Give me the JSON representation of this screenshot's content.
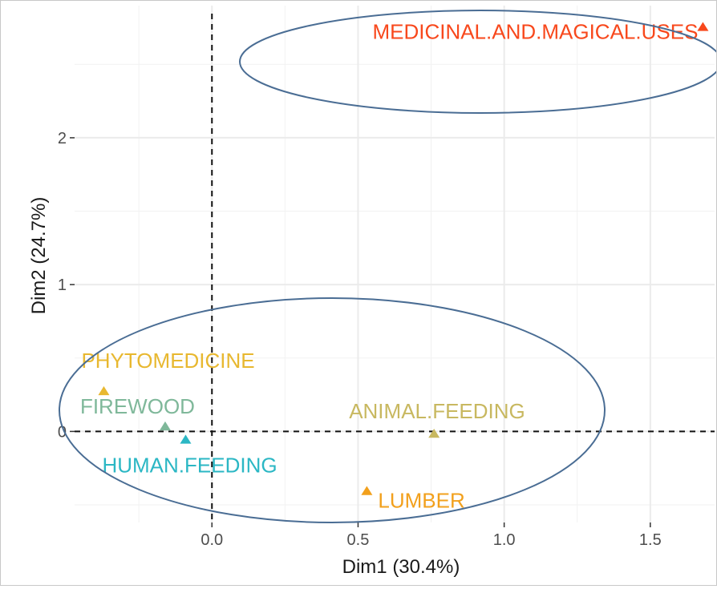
{
  "chart_data": {
    "type": "scatter",
    "xlabel": "Dim1 (30.4%)",
    "ylabel": "Dim2 (24.7%)",
    "xlim": [
      -0.47,
      1.72
    ],
    "ylim": [
      -0.62,
      2.9
    ],
    "x_ticks": [
      0.0,
      0.5,
      1.0,
      1.5
    ],
    "x_tick_labels": [
      "0.0",
      "0.5",
      "1.0",
      "1.5"
    ],
    "y_ticks": [
      0,
      1,
      2
    ],
    "y_tick_labels": [
      "0",
      "1",
      "2"
    ],
    "grid": true,
    "reference_lines": {
      "x": 0,
      "y": 0,
      "style": "dashed"
    },
    "points": [
      {
        "label": "MEDICINAL.AND.MAGICAL.USES",
        "x": 1.68,
        "y": 2.75,
        "color": "#f8481c"
      },
      {
        "label": "PHYTOMEDICINE",
        "x": -0.37,
        "y": 0.27,
        "color": "#e8b830"
      },
      {
        "label": "FIREWOOD",
        "x": -0.16,
        "y": 0.03,
        "color": "#7fb89a"
      },
      {
        "label": "HUMAN.FEEDING",
        "x": -0.09,
        "y": -0.06,
        "color": "#2bb7c4"
      },
      {
        "label": "ANIMAL.FEEDING",
        "x": 0.76,
        "y": -0.02,
        "color": "#c8b860"
      },
      {
        "label": "LUMBER",
        "x": 0.53,
        "y": -0.41,
        "color": "#f2a01c"
      }
    ],
    "annotations": [
      {
        "type": "ellipse",
        "encloses": [
          "MEDICINAL.AND.MAGICAL.USES"
        ],
        "color": "#4a6d94"
      },
      {
        "type": "ellipse",
        "encloses": [
          "PHYTOMEDICINE",
          "FIREWOOD",
          "HUMAN.FEEDING",
          "ANIMAL.FEEDING",
          "LUMBER"
        ],
        "color": "#4a6d94"
      }
    ]
  }
}
